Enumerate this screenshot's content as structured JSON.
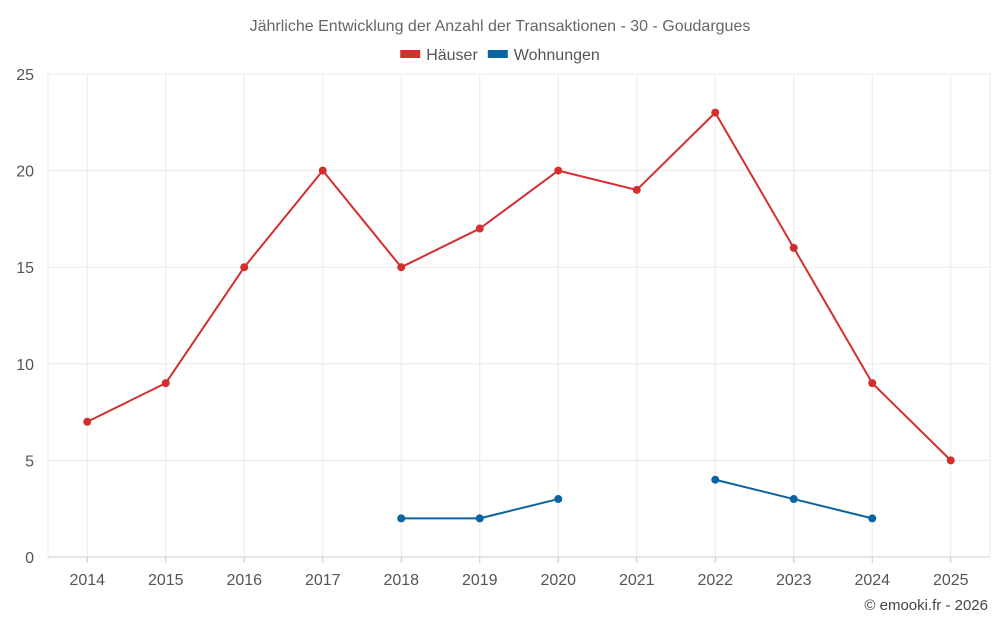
{
  "chart_data": {
    "type": "line",
    "title": "Jährliche Entwicklung der Anzahl der Transaktionen - 30 - Goudargues",
    "xlabel": "",
    "ylabel": "",
    "categories": [
      "2014",
      "2015",
      "2016",
      "2017",
      "2018",
      "2019",
      "2020",
      "2021",
      "2022",
      "2023",
      "2024",
      "2025"
    ],
    "ylim": [
      0,
      25
    ],
    "yticks": [
      0,
      5,
      10,
      15,
      20,
      25
    ],
    "grid": true,
    "legend_position": "top-center",
    "series": [
      {
        "name": "Häuser",
        "color": "#d32f2f",
        "values": [
          7,
          9,
          15,
          20,
          15,
          17,
          20,
          19,
          23,
          16,
          9,
          5
        ]
      },
      {
        "name": "Wohnungen",
        "color": "#0a64a0",
        "values": [
          null,
          null,
          null,
          null,
          2,
          2,
          3,
          null,
          4,
          3,
          2,
          null
        ]
      }
    ]
  },
  "credit": "© emooki.fr - 2026"
}
